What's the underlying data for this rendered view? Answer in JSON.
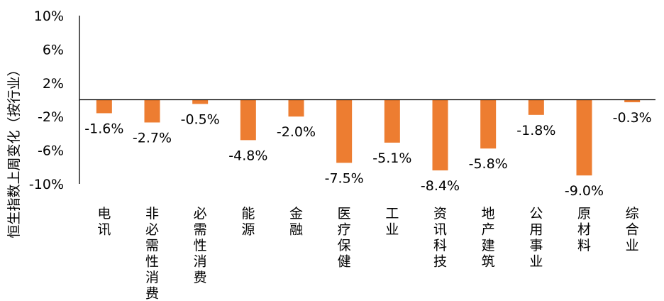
{
  "chart_data": {
    "type": "bar",
    "ylabel": "恒生指数上周变化（按行业）",
    "ylim": [
      -10,
      10
    ],
    "yticks": [
      10,
      6,
      2,
      -2,
      -6,
      -10
    ],
    "ytick_labels": [
      "10%",
      "6%",
      "2%",
      "-2%",
      "-6%",
      "-10%"
    ],
    "bar_color": "#ED7D31",
    "grid": false,
    "legend": "none",
    "categories": [
      "电讯",
      "非必需性消费",
      "必需性消费",
      "能源",
      "金融",
      "医疗保健",
      "工业",
      "资讯科技",
      "地产建筑",
      "公用事业",
      "原材料",
      "综合业"
    ],
    "values": [
      -1.6,
      -2.7,
      -0.5,
      -4.8,
      -2.0,
      -7.5,
      -5.1,
      -8.4,
      -5.8,
      -1.8,
      -9.0,
      -0.3
    ],
    "data_labels": [
      "-1.6%",
      "-2.7%",
      "-0.5%",
      "-4.8%",
      "-2.0%",
      "-7.5%",
      "-5.1%",
      "-8.4%",
      "-5.8%",
      "-1.8%",
      "-9.0%",
      "-0.3%"
    ]
  }
}
